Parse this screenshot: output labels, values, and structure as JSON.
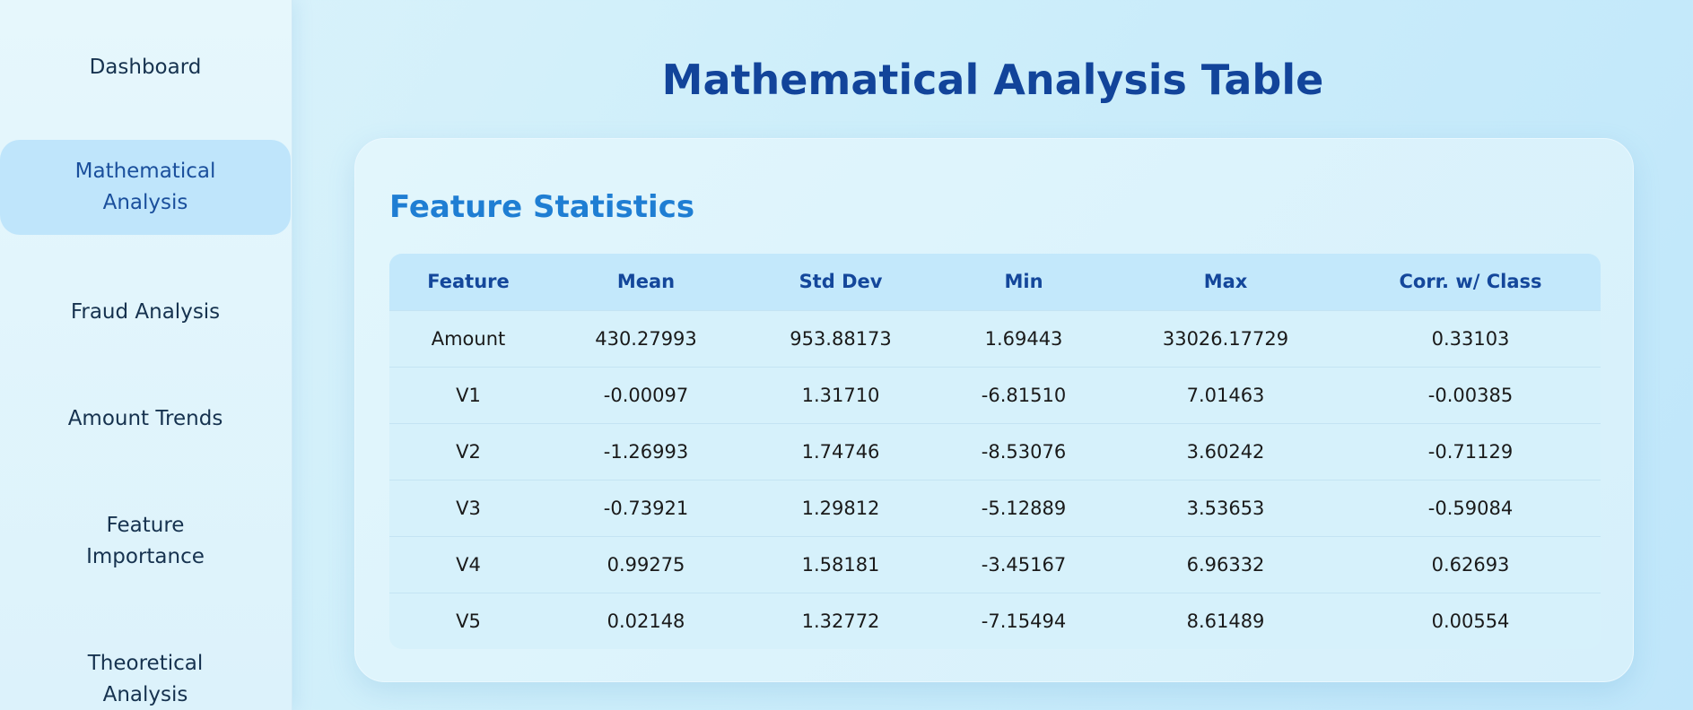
{
  "sidebar": {
    "items": [
      {
        "label": "Dashboard"
      },
      {
        "label": "Mathematical Analysis"
      },
      {
        "label": "Fraud Analysis"
      },
      {
        "label": "Amount Trends"
      },
      {
        "label": "Feature Importance"
      },
      {
        "label": "Theoretical Analysis"
      }
    ],
    "active": "Mathematical Analysis"
  },
  "main": {
    "title": "Mathematical Analysis Table",
    "card": {
      "title": "Feature Statistics",
      "table": {
        "headers": [
          "Feature",
          "Mean",
          "Std Dev",
          "Min",
          "Max",
          "Corr. w/ Class"
        ],
        "rows": [
          [
            "Amount",
            "430.27993",
            "953.88173",
            "1.69443",
            "33026.17729",
            "0.33103"
          ],
          [
            "V1",
            "-0.00097",
            "1.31710",
            "-6.81510",
            "7.01463",
            "-0.00385"
          ],
          [
            "V2",
            "-1.26993",
            "1.74746",
            "-8.53076",
            "3.60242",
            "-0.71129"
          ],
          [
            "V3",
            "-0.73921",
            "1.29812",
            "-5.12889",
            "3.53653",
            "-0.59084"
          ],
          [
            "V4",
            "0.99275",
            "1.58181",
            "-3.45167",
            "6.96332",
            "0.62693"
          ],
          [
            "V5",
            "0.02148",
            "1.32772",
            "-7.15494",
            "8.61489",
            "0.00554"
          ]
        ]
      }
    }
  },
  "colors": {
    "accent": "#12449a",
    "card_title": "#1f7ed3",
    "active_nav_bg": "#bfe5fb"
  }
}
